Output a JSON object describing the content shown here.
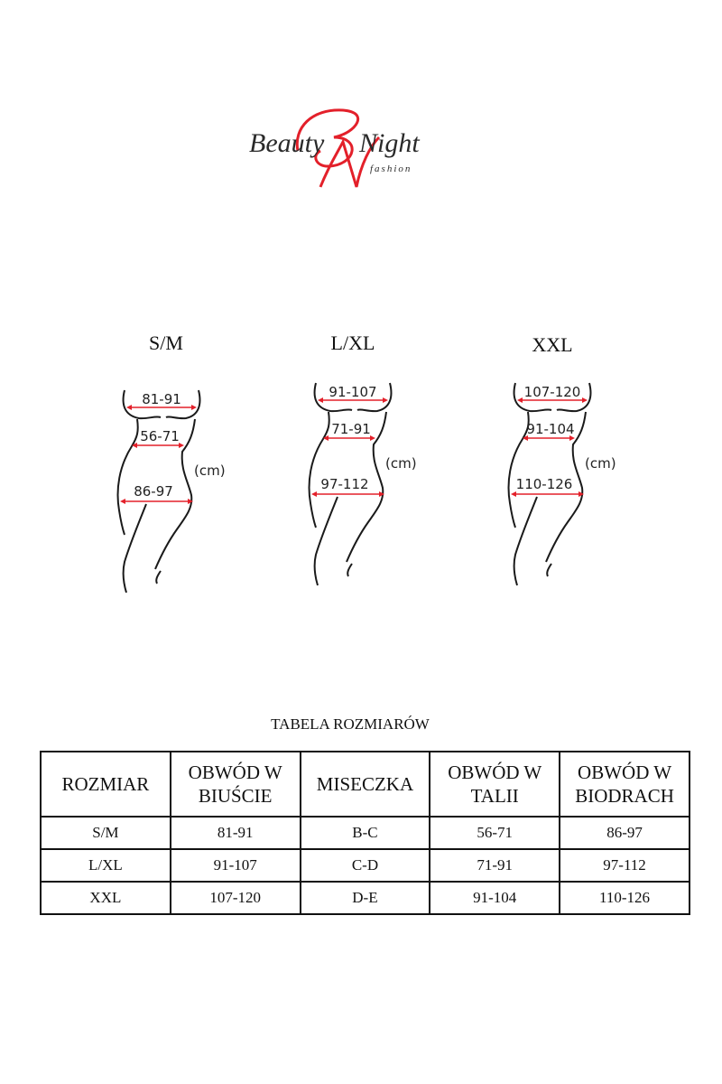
{
  "logo": {
    "text": "Beauty Night",
    "subtext": "fashion",
    "monogram": "BN",
    "colors": {
      "script": "#2a2a2a",
      "monogram": "#e3202a"
    }
  },
  "figures": [
    {
      "size": "S/M",
      "bust": "81-91",
      "waist": "56-71",
      "hips": "86-97",
      "unit": "(cm)"
    },
    {
      "size": "L/XL",
      "bust": "91-107",
      "waist": "71-91",
      "hips": "97-112",
      "unit": "(cm)"
    },
    {
      "size": "XXL",
      "bust": "107-120",
      "waist": "91-104",
      "hips": "110-126",
      "unit": "(cm)"
    }
  ],
  "arrow_color": "#e3202a",
  "table": {
    "title": "TABELA ROZMIARÓW",
    "headers": [
      "ROZMIAR",
      "OBWÓD W BIUŚCIE",
      "MISECZKA",
      "OBWÓD W TALII",
      "OBWÓD W BIODRACH"
    ],
    "rows": [
      [
        "S/M",
        "81-91",
        "B-C",
        "56-71",
        "86-97"
      ],
      [
        "L/XL",
        "91-107",
        "C-D",
        "71-91",
        "97-112"
      ],
      [
        "XXL",
        "107-120",
        "D-E",
        "91-104",
        "110-126"
      ]
    ]
  }
}
